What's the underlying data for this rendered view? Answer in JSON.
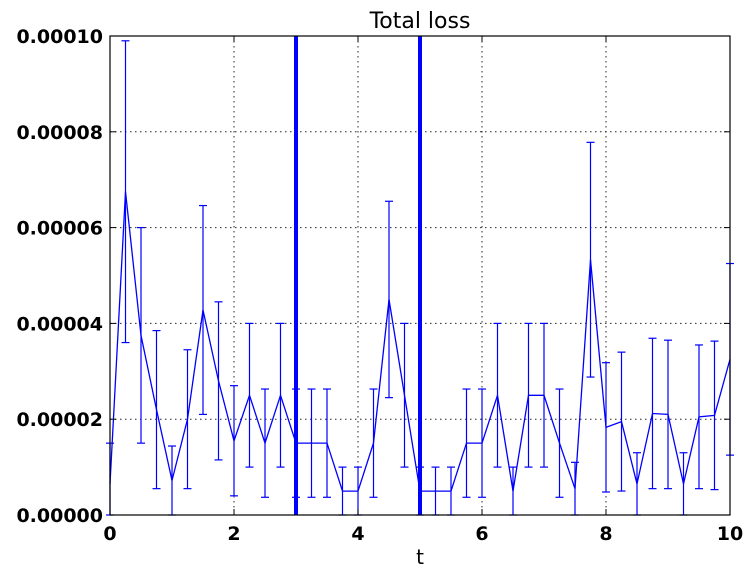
{
  "chart_data": {
    "type": "line",
    "title": "Total loss",
    "xlabel": "t",
    "ylabel": "",
    "xlim": [
      0,
      10
    ],
    "ylim": [
      0,
      0.0001
    ],
    "x_ticks": [
      "0",
      "2",
      "4",
      "6",
      "8",
      "10"
    ],
    "y_ticks": [
      "0.00000",
      "0.00002",
      "0.00004",
      "0.00006",
      "0.00008",
      "0.00010"
    ],
    "grid": true,
    "error_bars": true,
    "vertical_lines_x": [
      3,
      5
    ],
    "series": [
      {
        "color": "#0000ff",
        "x": [
          0,
          0.25,
          0.5,
          0.75,
          1.0,
          1.25,
          1.5,
          1.75,
          2.0,
          2.25,
          2.5,
          2.75,
          3.0,
          3.25,
          3.5,
          3.75,
          4.0,
          4.25,
          4.5,
          4.75,
          5.0,
          5.25,
          5.5,
          5.75,
          6.0,
          6.25,
          6.5,
          6.75,
          7.0,
          7.25,
          7.5,
          7.75,
          8.0,
          8.25,
          8.5,
          8.75,
          9.0,
          9.25,
          9.5,
          9.75,
          10.0
        ],
        "y": [
          6.5e-06,
          6.75e-05,
          3.75e-05,
          2.2e-05,
          7.2e-06,
          2e-05,
          4.28e-05,
          2.8e-05,
          1.55e-05,
          2.5e-05,
          1.5e-05,
          2.5e-05,
          1.5e-05,
          1.5e-05,
          1.5e-05,
          5e-06,
          5e-06,
          1.5e-05,
          4.5e-05,
          2.5e-05,
          5e-06,
          5e-06,
          5e-06,
          1.5e-05,
          1.5e-05,
          2.5e-05,
          5e-06,
          2.5e-05,
          2.5e-05,
          1.5e-05,
          5.5e-06,
          5.33e-05,
          1.83e-05,
          1.95e-05,
          6.5e-06,
          2.12e-05,
          2.1e-05,
          6.5e-06,
          2.05e-05,
          2.08e-05,
          3.25e-05
        ],
        "yerr": [
          8.5e-06,
          3.15e-05,
          2.25e-05,
          1.65e-05,
          7.2e-06,
          1.45e-05,
          2.18e-05,
          1.65e-05,
          1.15e-05,
          1.5e-05,
          1.13e-05,
          1.5e-05,
          1.13e-05,
          1.13e-05,
          1.13e-05,
          5e-06,
          5e-06,
          1.13e-05,
          2.05e-05,
          1.5e-05,
          5e-06,
          5e-06,
          5e-06,
          1.13e-05,
          1.13e-05,
          1.5e-05,
          5e-06,
          1.5e-05,
          1.5e-05,
          1.13e-05,
          5.5e-06,
          2.45e-05,
          1.35e-05,
          1.45e-05,
          6.5e-06,
          1.57e-05,
          1.55e-05,
          6.5e-06,
          1.5e-05,
          1.55e-05,
          2e-05
        ]
      }
    ]
  }
}
